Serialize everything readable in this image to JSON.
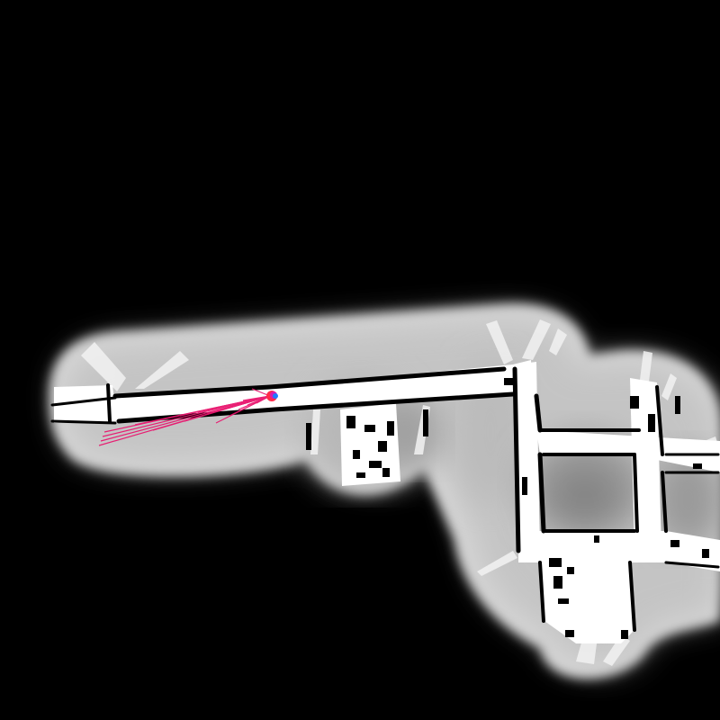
{
  "map": {
    "colors": {
      "unknown": "#000000",
      "free": "#ffffff",
      "wall": "#000000",
      "costmap_light": "#d6d6d6",
      "costmap_mid": "#b4b4b4",
      "costmap_dark": "#8c8c8c",
      "scan_ray": "#e8166e",
      "robot_blue": "#1e7bff",
      "robot_red": "#ff2a4a",
      "robot_magenta": "#d81bb0"
    }
  },
  "robot": {
    "icon": "robot-pose-marker-icon"
  },
  "laser_scan": {
    "icon": "laser-scan-rays"
  }
}
